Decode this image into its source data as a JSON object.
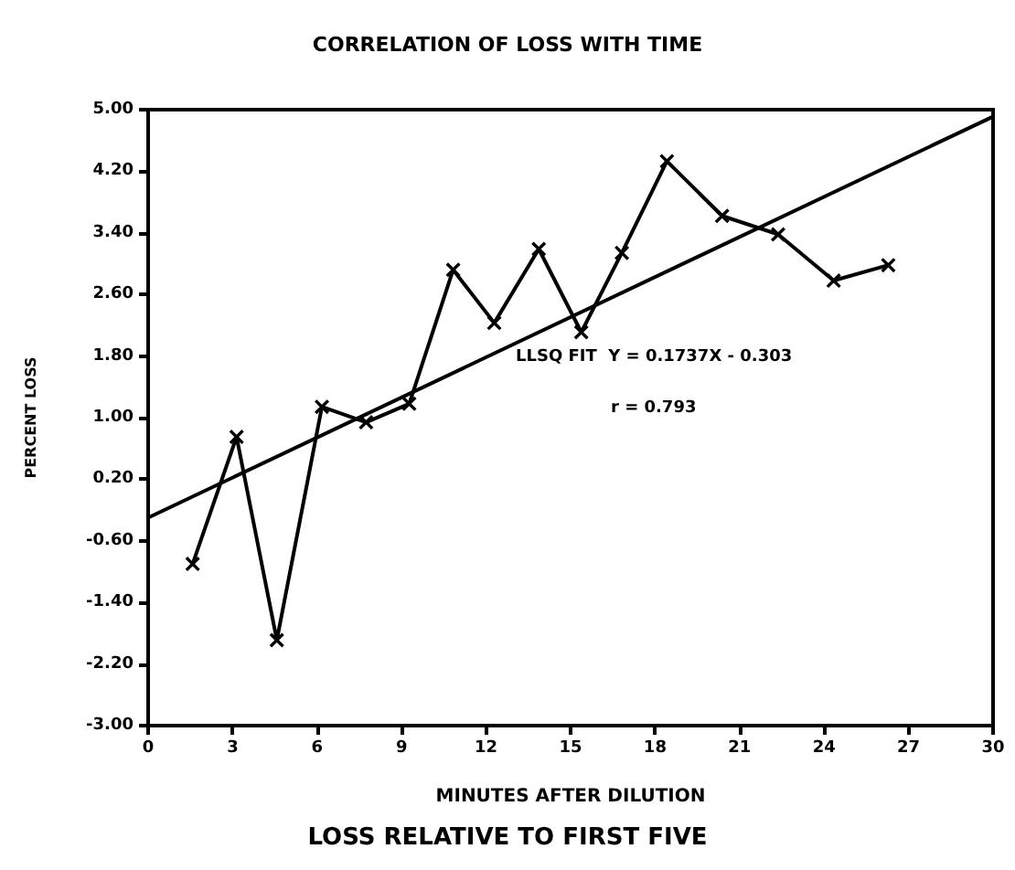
{
  "chart_data": {
    "type": "line",
    "title": "CORRELATION OF LOSS WITH TIME",
    "xlabel": "MINUTES AFTER DILUTION",
    "ylabel": "PERCENT LOSS",
    "annotations": [
      "LLSQ FIT  Y = 0.1737X - 0.303",
      "r = 0.793",
      "LOSS RELATIVE TO FIRST FIVE"
    ],
    "series": [
      {
        "color": "#000000",
        "x": [
          1.58,
          3.14,
          4.57,
          6.17,
          7.74,
          9.27,
          10.83,
          12.29,
          13.87,
          15.38,
          16.82,
          18.42,
          20.38,
          22.37,
          24.34,
          26.28
        ],
        "values": [
          -0.9,
          0.75,
          -1.89,
          1.14,
          0.94,
          1.18,
          2.92,
          2.23,
          3.19,
          2.11,
          3.14,
          4.33,
          3.62,
          3.38,
          2.78,
          2.98
        ]
      },
      {
        "color": "#000000",
        "marker": "none",
        "x": [
          0,
          30
        ],
        "values": [
          -0.3,
          4.91
        ]
      }
    ],
    "xlim": [
      0,
      30
    ],
    "xticks": [
      0,
      3,
      6,
      9,
      12,
      15,
      18,
      21,
      24,
      27,
      30
    ],
    "ylim": [
      -3,
      5
    ],
    "yticks": [
      {
        "value": -3,
        "label": "-3.00"
      },
      {
        "value": -2.2,
        "label": "-2.20"
      },
      {
        "value": -1.4,
        "label": "-1.40"
      },
      {
        "value": -0.6,
        "label": "-0.60"
      },
      {
        "value": 0.2,
        "label": "0.20"
      },
      {
        "value": 1,
        "label": "1.00"
      },
      {
        "value": 1.8,
        "label": "1.80"
      },
      {
        "value": 2.6,
        "label": "2.60"
      },
      {
        "value": 3.4,
        "label": "3.40"
      },
      {
        "value": 4.2,
        "label": "4.20"
      },
      {
        "value": 5,
        "label": "5.00"
      }
    ],
    "grid": false,
    "marker": "cross",
    "line_style": "solid"
  }
}
